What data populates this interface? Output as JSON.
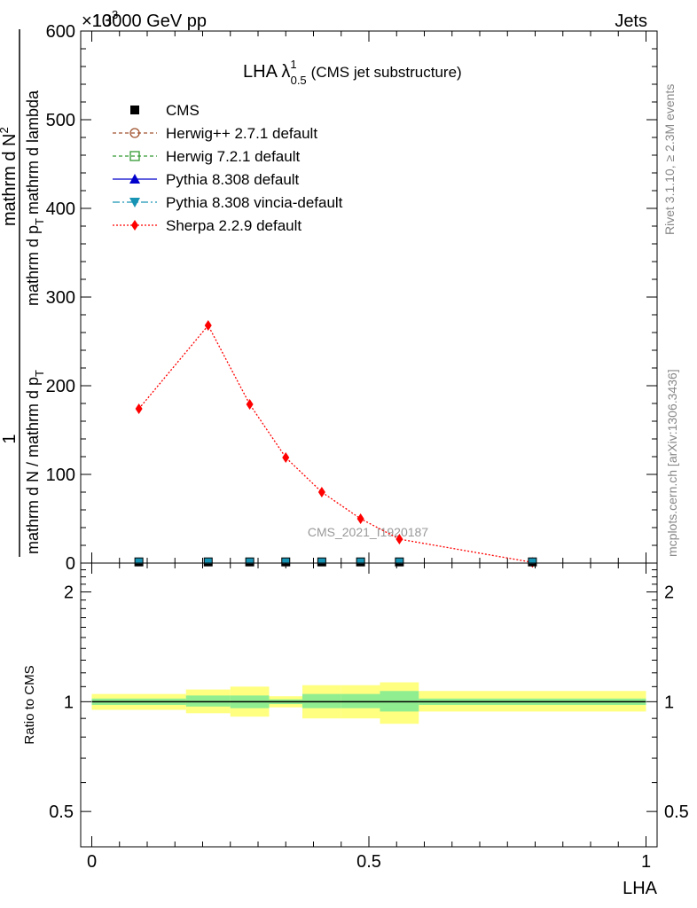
{
  "header": {
    "exponent_label": "×10",
    "exponent_power": "3",
    "left": "13000 GeV pp",
    "right": "Jets"
  },
  "side_labels": {
    "rivet": "Rivet 3.1.10, ≥ 2.3M events",
    "mcplots": "mcplots.cern.ch [arXiv:1306.3436]"
  },
  "watermark": "CMS_2021_I1920187",
  "colors": {
    "cms": "#000000",
    "herwigpp": "#a0522d",
    "herwig7": "#339933",
    "pythia": "#0000cc",
    "vincia": "#1793b3",
    "sherpa": "#ff0000",
    "band_inner": "#90ee90",
    "band_outer": "#ffff80"
  },
  "chart_data": [
    {
      "type": "line",
      "title": "LHA λ",
      "title_sup": "1",
      "title_sub": "0.5",
      "title_note": "(CMS jet substructure)",
      "ylabel_parts": [
        "1",
        "mathrm d N / mathrm d p",
        "T",
        "mathrm d N",
        "mathrm d p",
        "T",
        "mathrm d lambda"
      ],
      "ylabel_top": "mathrm d N",
      "ylabel_top_sup": "2",
      "xlim": [
        -0.02,
        1.02
      ],
      "ylim": [
        0,
        600
      ],
      "yticks": [
        0,
        100,
        200,
        300,
        400,
        500,
        600
      ],
      "ytick_labels": [
        "0",
        "100",
        "200",
        "300",
        "400",
        "500",
        "600"
      ],
      "legend": [
        {
          "key": "cms",
          "label": "CMS"
        },
        {
          "key": "herwigpp",
          "label": "Herwig++ 2.7.1 default"
        },
        {
          "key": "herwig7",
          "label": "Herwig 7.2.1 default"
        },
        {
          "key": "pythia",
          "label": "Pythia 8.308 default"
        },
        {
          "key": "vincia",
          "label": "Pythia 8.308 vincia-default"
        },
        {
          "key": "sherpa",
          "label": "Sherpa 2.2.9 default"
        }
      ],
      "cms_points": [
        {
          "x": 0.085,
          "y": 0.3
        },
        {
          "x": 0.21,
          "y": 0.3
        },
        {
          "x": 0.285,
          "y": 0.3
        },
        {
          "x": 0.35,
          "y": 0.3
        },
        {
          "x": 0.415,
          "y": 0.3
        },
        {
          "x": 0.485,
          "y": 0.3
        },
        {
          "x": 0.555,
          "y": 0.3
        },
        {
          "x": 0.795,
          "y": 0.3
        }
      ],
      "series": [
        {
          "name": "Sherpa 2.2.9 default",
          "x": [
            0.085,
            0.21,
            0.285,
            0.35,
            0.415,
            0.485,
            0.555,
            0.795
          ],
          "y": [
            174,
            268,
            179,
            119,
            80,
            50,
            27,
            0.8
          ]
        }
      ]
    },
    {
      "type": "area",
      "ylabel": "Ratio to CMS",
      "xlabel": "LHA",
      "xlim": [
        -0.02,
        1.02
      ],
      "ylim": [
        0.4,
        2.4
      ],
      "log_y": true,
      "yticks_left": [
        0.5,
        1,
        2
      ],
      "ytick_labels_left": [
        "0.5",
        "1",
        "2"
      ],
      "yticks_right": [
        0.5,
        1,
        2
      ],
      "ytick_labels_right": [
        "0.5",
        "1",
        "2"
      ],
      "xticks": [
        0,
        0.5,
        1
      ],
      "xtick_labels": [
        "0",
        "0.5",
        "1"
      ],
      "reference": 1,
      "bins": [
        {
          "lo": 0.0,
          "hi": 0.17,
          "inner": [
            0.98,
            1.02
          ],
          "outer": [
            0.95,
            1.05
          ]
        },
        {
          "lo": 0.17,
          "hi": 0.25,
          "inner": [
            0.97,
            1.04
          ],
          "outer": [
            0.93,
            1.08
          ]
        },
        {
          "lo": 0.25,
          "hi": 0.32,
          "inner": [
            0.96,
            1.04
          ],
          "outer": [
            0.91,
            1.1
          ]
        },
        {
          "lo": 0.32,
          "hi": 0.38,
          "inner": [
            0.985,
            1.015
          ],
          "outer": [
            0.965,
            1.035
          ]
        },
        {
          "lo": 0.38,
          "hi": 0.45,
          "inner": [
            0.96,
            1.05
          ],
          "outer": [
            0.9,
            1.11
          ]
        },
        {
          "lo": 0.45,
          "hi": 0.52,
          "inner": [
            0.96,
            1.05
          ],
          "outer": [
            0.9,
            1.11
          ]
        },
        {
          "lo": 0.52,
          "hi": 0.59,
          "inner": [
            0.94,
            1.07
          ],
          "outer": [
            0.87,
            1.13
          ]
        },
        {
          "lo": 0.59,
          "hi": 1.0,
          "inner": [
            0.98,
            1.02
          ],
          "outer": [
            0.94,
            1.07
          ]
        }
      ]
    }
  ]
}
